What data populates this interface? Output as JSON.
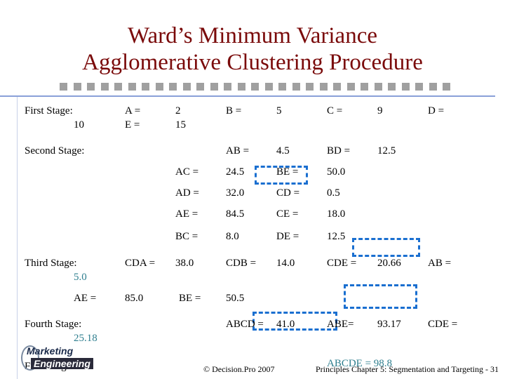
{
  "header": {
    "title_lines": [
      "Ward’s Minimum Variance",
      "Agglomerative Clustering Procedure"
    ]
  },
  "cells": [
    "First Stage:",
    "10",
    "A =",
    "E =",
    "2",
    "15",
    "B =",
    "5",
    "C =",
    "9",
    "D =",
    "Second Stage:",
    "AB =",
    "4.5",
    "BD =",
    "12.5",
    "AC =",
    "24.5",
    "BE =",
    "50.0",
    "AD =",
    "32.0",
    "CD =",
    "0.5",
    "AE =",
    "84.5",
    "CE =",
    "18.0",
    "BC =",
    "8.0",
    "DE =",
    "12.5",
    "Third Stage:",
    "5.0",
    "CDA =",
    "38.0",
    "CDB =",
    "14.0",
    "CDE =",
    "20.66",
    "AB =",
    "AE =",
    "85.0",
    "BE =",
    "50.5",
    "Fourth Stage:",
    "25.18",
    "ABCD =",
    "41.0",
    "ABE=",
    "93.17",
    "CDE =",
    "Fifth Stage:",
    "ABCDE = 98.8"
  ],
  "logo": {
    "line1": "Marketing",
    "line2": "Engineering"
  },
  "footer": {
    "copyright": "© Decision.Pro 2007",
    "slide": "Principles Chapter 5: Segmentation and Targeting - 31"
  }
}
